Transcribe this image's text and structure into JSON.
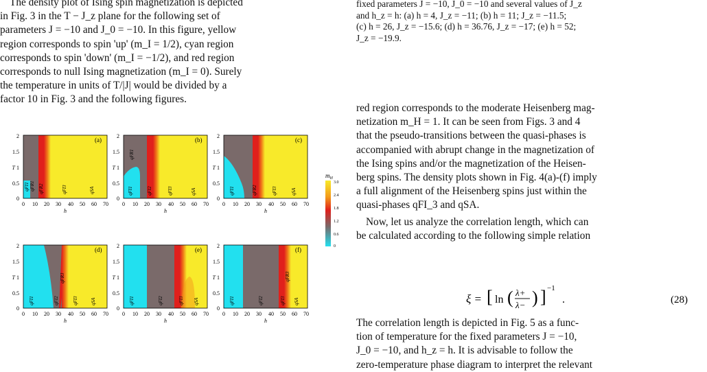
{
  "left_text": {
    "line1": "The density plot of Ising spin magnetization is depicted",
    "line2": "in Fig. 3 in the T − J_z plane for the following set of",
    "line3": "parameters J = −10 and J_0 = −10. In this figure, yellow",
    "line4": "region corresponds to spin 'up' (m_I = 1/2), cyan region",
    "line5": "corresponds to spin 'down' (m_I = −1/2), and red region",
    "line6": "corresponds to null Ising magnetization (m_I = 0). Surely",
    "line7": "the temperature in units of T/|J| would be divided by a",
    "line8": "factor 10 in Fig. 3 and the following figures."
  },
  "caption": {
    "line1": "fixed parameters J = −10, J_0 = −10 and several values of J_z",
    "line2": "and h_z = h: (a) h = 4, J_z = −11; (b) h = 11; J_z = −11.5;",
    "line3": "(c) h = 26, J_z = −15.6; (d) h = 36.76, J_z = −17; (e) h = 52;",
    "line4": "J_z = −19.9."
  },
  "right_text": {
    "r1": "red region corresponds to the moderate Heisenberg mag-",
    "r2": "netization m_H = 1. It can be seen from Figs. 3 and 4",
    "r3": "that the pseudo-transitions between the quasi-phases is",
    "r4": "accompanied with abrupt change in the magnetization of",
    "r5": "the Ising spins and/or the magnetization of the Heisen-",
    "r6": "berg spins. The density plots shown in Fig. 4(a)-(f) imply",
    "r7": "a full alignment of the Heisenberg spins just within the",
    "r8": "quasi-phases qFI_3 and qSA.",
    "r9": "Now, let us analyze the correlation length, which can",
    "r10": "be calculated according to the following simple relation",
    "r11": "The correlation length is depicted in Fig. 5 as a func-",
    "r12": "tion of temperature for the fixed parameters J = −10,",
    "r13": "J_0 = −10, and h_z = h. It is advisable to follow the",
    "r14": "zero-temperature phase diagram to interpret the relevant"
  },
  "equation": {
    "lhs": "ξ =",
    "ln": "ln",
    "num": "λ+",
    "den": "λ−",
    "exp": "−1",
    "label": "(28)"
  },
  "figure": {
    "ylabel": "T",
    "xlabel": "h",
    "x_ticks": [
      "0",
      "10",
      "20",
      "30",
      "40",
      "50",
      "60",
      "70"
    ],
    "y_ticks": [
      "0",
      "0.5",
      "1",
      "1.5",
      "2"
    ],
    "y_mid_label": "T 1",
    "panels": [
      {
        "label": "(a)",
        "phases": [
          "qFI1",
          "qFR1",
          "qFR2",
          "qFI3",
          "qSA"
        ]
      },
      {
        "label": "(b)",
        "phases": [
          "qFI1",
          "qFR1",
          "qFI2",
          "qFI3",
          "qSA"
        ]
      },
      {
        "label": "(c)",
        "phases": [
          "qFI1",
          "qFR2",
          "qFI3",
          "qSA"
        ]
      },
      {
        "label": "(d)",
        "phases": [
          "qFI1",
          "qFI2",
          "qFR3",
          "qFI3",
          "qSA"
        ]
      },
      {
        "label": "(e)",
        "phases": [
          "qFI1",
          "qFI2",
          "qFI3",
          "qSA"
        ]
      },
      {
        "label": "(f)",
        "phases": [
          "qFI1",
          "qFI2",
          "qFI3",
          "qFR3",
          "qSA"
        ]
      }
    ],
    "colorbar": {
      "title": "m_H",
      "ticks": [
        "3.0",
        "2.4",
        "1.8",
        "1.2",
        "0.6",
        "0"
      ]
    },
    "colors": {
      "cyan": "#22e0ef",
      "gray": "#7a6a6a",
      "red": "#e0201c",
      "orange": "#f39a1a",
      "yellow": "#f8ea2a"
    }
  }
}
